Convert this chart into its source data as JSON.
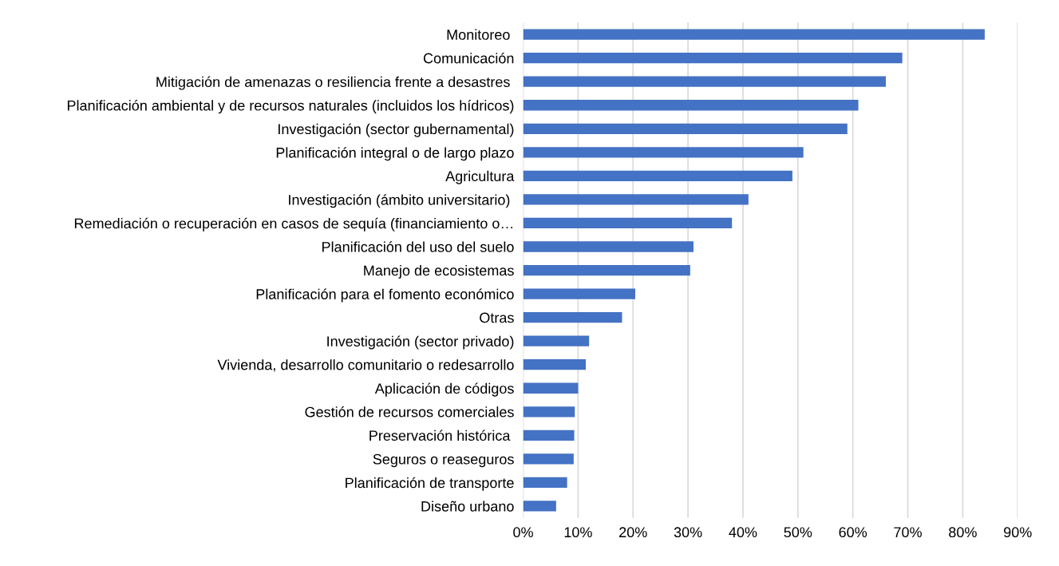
{
  "chart_data": {
    "type": "bar",
    "orientation": "horizontal",
    "categories": [
      "Monitoreo ",
      "Comunicación",
      "Mitigación de amenazas o resiliencia frente a desastres ",
      "Planificación ambiental y de recursos naturales (incluidos los hídricos)",
      "Investigación (sector gubernamental)",
      "Planificación integral o de largo plazo",
      "Agricultura",
      "Investigación (ámbito universitario) ",
      "Remediación o recuperación en casos de sequía (financiamiento o…",
      "Planificación del uso del suelo",
      "Manejo de ecosistemas",
      "Planificación para el fomento económico",
      "Otras",
      "Investigación (sector privado)",
      "Vivienda, desarrollo comunitario o redesarrollo",
      "Aplicación de códigos",
      "Gestión de recursos comerciales",
      "Preservación histórica ",
      "Seguros o reaseguros",
      "Planificación de transporte",
      "Diseño urbano"
    ],
    "values": [
      84,
      69,
      66,
      61,
      59,
      51,
      49,
      41,
      38,
      31,
      30.4,
      20.4,
      18,
      12,
      11.4,
      10,
      9.4,
      9.3,
      9.2,
      8,
      6
    ],
    "color": "#4472c4",
    "xlim": [
      0,
      90
    ],
    "xticks": [
      {
        "value": 0,
        "label": "0%"
      },
      {
        "value": 10,
        "label": "10%"
      },
      {
        "value": 20,
        "label": "20%"
      },
      {
        "value": 30,
        "label": "30%"
      },
      {
        "value": 40,
        "label": "40%"
      },
      {
        "value": 50,
        "label": "50%"
      },
      {
        "value": 60,
        "label": "60%"
      },
      {
        "value": 70,
        "label": "70%"
      },
      {
        "value": 80,
        "label": "80%"
      },
      {
        "value": 90,
        "label": "90%"
      }
    ],
    "grid": "x",
    "legend": false
  }
}
